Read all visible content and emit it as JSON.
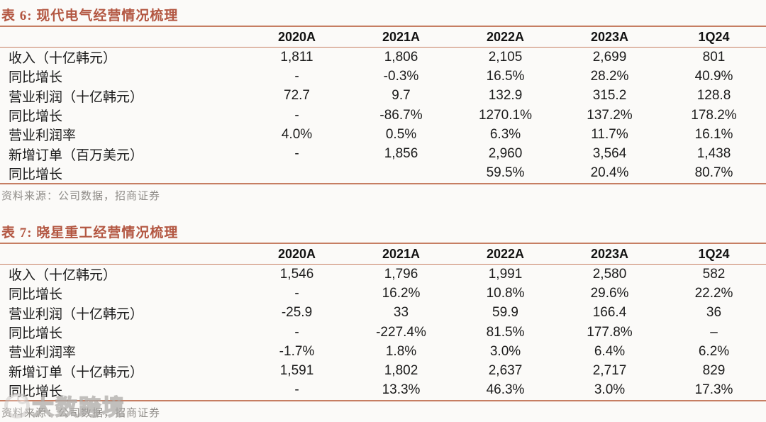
{
  "colors": {
    "accent_title": "#b35742",
    "table_rule": "#c67e63",
    "source_text": "#8f8c88",
    "background": "#fbfaf8"
  },
  "watermark": {
    "text": "大数跨境"
  },
  "tables": [
    {
      "title": "表 6: 现代电气经营情况梳理",
      "columns": [
        "2020A",
        "2021A",
        "2022A",
        "2023A",
        "1Q24"
      ],
      "rows": [
        {
          "label": "收入（十亿韩元）",
          "values": [
            "1,811",
            "1,806",
            "2,105",
            "2,699",
            "801"
          ]
        },
        {
          "label": "同比增长",
          "values": [
            "-",
            "-0.3%",
            "16.5%",
            "28.2%",
            "40.9%"
          ]
        },
        {
          "label": "营业利润（十亿韩元）",
          "values": [
            "72.7",
            "9.7",
            "132.9",
            "315.2",
            "128.8"
          ]
        },
        {
          "label": "同比增长",
          "values": [
            "-",
            "-86.7%",
            "1270.1%",
            "137.2%",
            "178.2%"
          ]
        },
        {
          "label": "营业利润率",
          "values": [
            "4.0%",
            "0.5%",
            "6.3%",
            "11.7%",
            "16.1%"
          ]
        },
        {
          "label": "新增订单（百万美元）",
          "values": [
            "-",
            "1,856",
            "2,960",
            "3,564",
            "1,438"
          ]
        },
        {
          "label": "同比增长",
          "values": [
            "",
            "",
            "59.5%",
            "20.4%",
            "80.7%"
          ]
        }
      ],
      "source": "资料来源：公司数据，招商证券"
    },
    {
      "title": "表 7: 晓星重工经营情况梳理",
      "columns": [
        "2020A",
        "2021A",
        "2022A",
        "2023A",
        "1Q24"
      ],
      "rows": [
        {
          "label": "收入（十亿韩元）",
          "values": [
            "1,546",
            "1,796",
            "1,991",
            "2,580",
            "582"
          ]
        },
        {
          "label": "同比增长",
          "values": [
            "-",
            "16.2%",
            "10.8%",
            "29.6%",
            "22.2%"
          ]
        },
        {
          "label": "营业利润（十亿韩元）",
          "values": [
            "-25.9",
            "33",
            "59.9",
            "166.4",
            "36"
          ]
        },
        {
          "label": "同比增长",
          "values": [
            "-",
            "-227.4%",
            "81.5%",
            "177.8%",
            "–"
          ]
        },
        {
          "label": "营业利润率",
          "values": [
            "-1.7%",
            "1.8%",
            "3.0%",
            "6.4%",
            "6.2%"
          ]
        },
        {
          "label": "新增订单（十亿韩元）",
          "values": [
            "1,591",
            "1,802",
            "2,637",
            "2,717",
            "829"
          ]
        },
        {
          "label": "同比增长",
          "values": [
            "-",
            "13.3%",
            "46.3%",
            "3.0%",
            "17.3%"
          ]
        }
      ],
      "source": "资料来源：公司数据，招商证券"
    }
  ]
}
